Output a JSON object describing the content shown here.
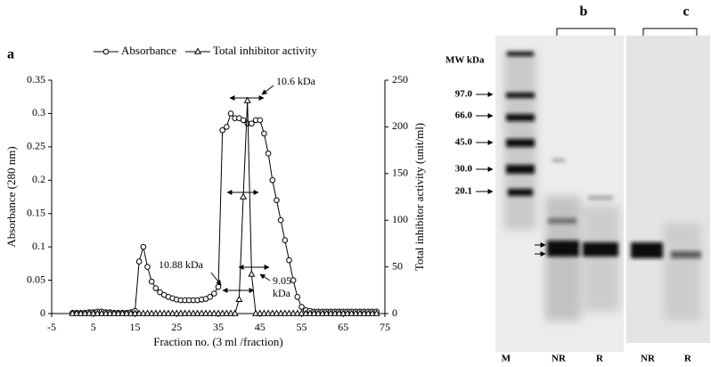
{
  "chart_data": {
    "type": "line",
    "panel_label": "a",
    "xlabel": "Fraction no. (3 ml /fraction)",
    "ylabel": "Absorbance (280 nm)",
    "y2label": "Total inhibitor activity (unit/ml)",
    "x": [
      0,
      1,
      2,
      3,
      4,
      5,
      6,
      7,
      8,
      9,
      10,
      11,
      12,
      13,
      14,
      15,
      16,
      17,
      18,
      19,
      20,
      21,
      22,
      23,
      24,
      25,
      26,
      27,
      28,
      29,
      30,
      31,
      32,
      33,
      34,
      35,
      36,
      37,
      38,
      39,
      40,
      41,
      42,
      43,
      44,
      45,
      46,
      47,
      48,
      49,
      50,
      51,
      52,
      53,
      54,
      55,
      56,
      57,
      58,
      59,
      60,
      61,
      62,
      63,
      64,
      65,
      66,
      67,
      68,
      69,
      70,
      71,
      72,
      73
    ],
    "series": [
      {
        "name": "Absorbance",
        "color": "#000000",
        "marker": "circle",
        "values": [
          0.001,
          0.001,
          0.001,
          0.001,
          0.002,
          0.002,
          0.003,
          0.003,
          0.002,
          0.002,
          0.001,
          0.001,
          0.001,
          0.001,
          0.002,
          0.004,
          0.078,
          0.1,
          0.07,
          0.048,
          0.038,
          0.032,
          0.028,
          0.025,
          0.023,
          0.021,
          0.02,
          0.02,
          0.02,
          0.02,
          0.02,
          0.021,
          0.022,
          0.025,
          0.03,
          0.04,
          0.275,
          0.28,
          0.3,
          0.293,
          0.293,
          0.29,
          0.285,
          0.285,
          0.29,
          0.29,
          0.27,
          0.24,
          0.2,
          0.17,
          0.14,
          0.11,
          0.08,
          0.05,
          0.025,
          0.01,
          0.005,
          0.004,
          0.003,
          0.003,
          0.003,
          0.003,
          0.003,
          0.003,
          0.003,
          0.003,
          0.003,
          0.003,
          0.003,
          0.003,
          0.003,
          0.003,
          0.003,
          0.003
        ]
      },
      {
        "name": "Total inhibitor activity",
        "color": "#000000",
        "marker": "triangle",
        "axis": "y2",
        "values": [
          0,
          0,
          0,
          0,
          0,
          0,
          0,
          0,
          0,
          0,
          0,
          0,
          0,
          0,
          0,
          0,
          0,
          0,
          0,
          0,
          0,
          0,
          0,
          0,
          0,
          0,
          0,
          0,
          0,
          0,
          0,
          0,
          0,
          0,
          0,
          0,
          0,
          0,
          0,
          0,
          15,
          125,
          228,
          42,
          0,
          0,
          0,
          0,
          0,
          0,
          0,
          0,
          0,
          0,
          0,
          0,
          0,
          0,
          0,
          0,
          0,
          0,
          0,
          0,
          0,
          0,
          0,
          0,
          0,
          0,
          0,
          0,
          0,
          0
        ]
      }
    ],
    "xlim": [
      -5,
      75
    ],
    "xticks": [
      -5,
      5,
      15,
      25,
      35,
      45,
      55,
      65,
      75
    ],
    "ylim": [
      0,
      0.35
    ],
    "yticks": [
      0,
      0.05,
      0.1,
      0.15,
      0.2,
      0.25,
      0.3,
      0.35
    ],
    "y2lim": [
      0,
      250
    ],
    "y2ticks": [
      0,
      50,
      100,
      150,
      200,
      250
    ],
    "legend": "top",
    "annotations": [
      "10.6 kDa",
      "10.88 kDa",
      "9.05",
      "kDa"
    ]
  },
  "gel": {
    "panels": [
      "b",
      "c"
    ],
    "mw_title": "MW kDa",
    "mw_labels": [
      "97.0",
      "66.0",
      "45.0",
      "30.0",
      "20.1"
    ],
    "lanes": [
      "M",
      "NR",
      "R",
      "NR",
      "R"
    ]
  }
}
